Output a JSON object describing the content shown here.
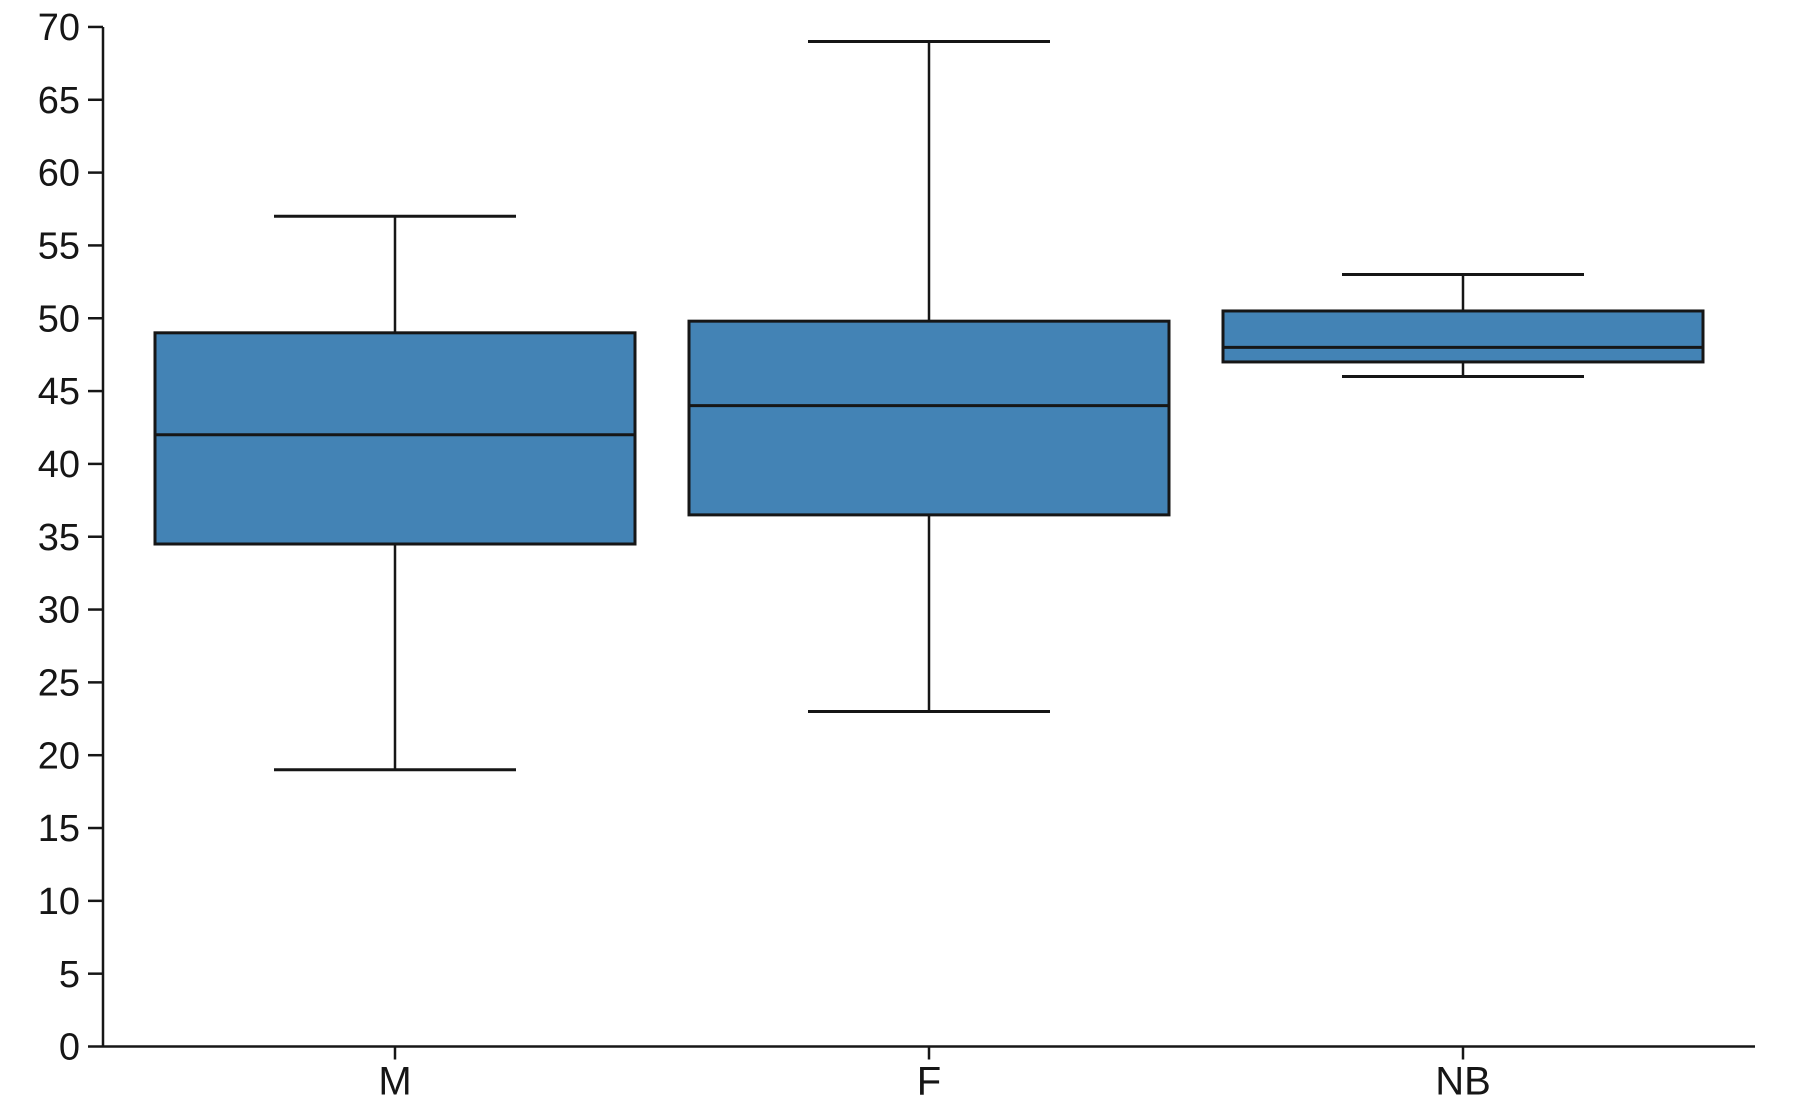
{
  "figure": {
    "background": "#ffffff"
  },
  "chart_data": {
    "type": "box",
    "title": "",
    "xlabel": "",
    "ylabel": "",
    "categories": [
      "M",
      "F",
      "NB"
    ],
    "series": [
      {
        "category": "M",
        "min": 19,
        "q1": 34.5,
        "median": 42,
        "q3": 49,
        "max": 57
      },
      {
        "category": "F",
        "min": 23,
        "q1": 36.5,
        "median": 44,
        "q3": 49.8,
        "max": 69
      },
      {
        "category": "NB",
        "min": 46,
        "q1": 47,
        "median": 48,
        "q3": 50.5,
        "max": 53
      }
    ],
    "ylim": [
      0,
      70
    ],
    "yticks": [
      0,
      5,
      10,
      15,
      20,
      25,
      30,
      35,
      40,
      45,
      50,
      55,
      60,
      65,
      70
    ],
    "ytick_labels": [
      "0",
      "5",
      "10",
      "15",
      "20",
      "25",
      "30",
      "35",
      "40",
      "45",
      "50",
      "55",
      "60",
      "65",
      "70"
    ],
    "grid": false,
    "legend": null,
    "colors": {
      "box_fill": "#4383b5",
      "line": "#161616",
      "background": "#ffffff"
    }
  }
}
